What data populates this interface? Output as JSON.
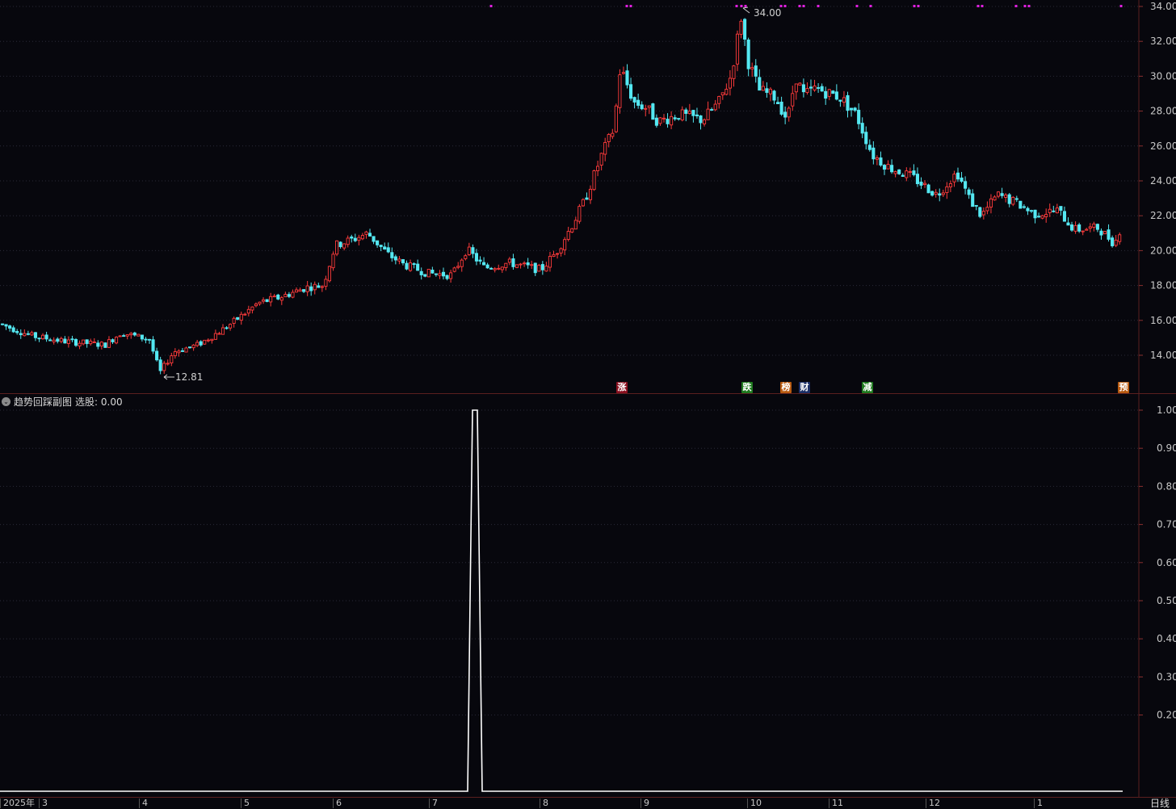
{
  "main_chart": {
    "title_fragment": "",
    "y_axis_ticks": [
      "34.00",
      "32.00",
      "30.00",
      "28.00",
      "26.00",
      "24.00",
      "22.00",
      "20.00",
      "18.00",
      "16.00",
      "14.00"
    ],
    "y_axis_values": [
      34,
      32,
      30,
      28,
      26,
      24,
      22,
      20,
      18,
      16,
      14
    ],
    "high_label": "34.00",
    "low_label": "12.81",
    "up_color": "#ff3b3b",
    "down_color": "#54e8f2",
    "marker_color": "#e020e0",
    "event_tags": [
      {
        "label": "涨",
        "bg": "#8a1020",
        "fg": "#ffffff"
      },
      {
        "label": "跌",
        "bg": "#1f7a1f",
        "fg": "#ffffff"
      },
      {
        "label": "榜",
        "bg": "#b85a10",
        "fg": "#ffffff"
      },
      {
        "label": "财",
        "bg": "#1c2f66",
        "fg": "#ffffff"
      },
      {
        "label": "减",
        "bg": "#1f7a1f",
        "fg": "#ffffff"
      },
      {
        "label": "预",
        "bg": "#b85a10",
        "fg": "#ffffff"
      }
    ]
  },
  "chart_data": {
    "type": "line",
    "title": "趋势回踩副图",
    "indicator_name": "选股",
    "indicator_value": "0.00",
    "ylim": [
      0,
      1.0
    ],
    "y_ticks": [
      1.0,
      0.9,
      0.8,
      0.7,
      0.6,
      0.5,
      0.4,
      0.3,
      0.2
    ],
    "y_tick_labels": [
      "1.00",
      "0.90",
      "0.80",
      "0.70",
      "0.60",
      "0.50",
      "0.40",
      "0.30",
      "0.20"
    ],
    "series": [
      {
        "values_description": "0 everywhere except single spike to 1.00 near mid-July 2025",
        "spike_value": 1.0
      }
    ]
  },
  "sub_chart": {
    "header_label": "趋势回踩副图",
    "indicator_label": "选股: 0.00"
  },
  "date_axis": {
    "labels": [
      "2025年",
      "3",
      "4",
      "5",
      "6",
      "7",
      "8",
      "9",
      "10",
      "11",
      "12",
      "1"
    ]
  },
  "period_button": "日线"
}
